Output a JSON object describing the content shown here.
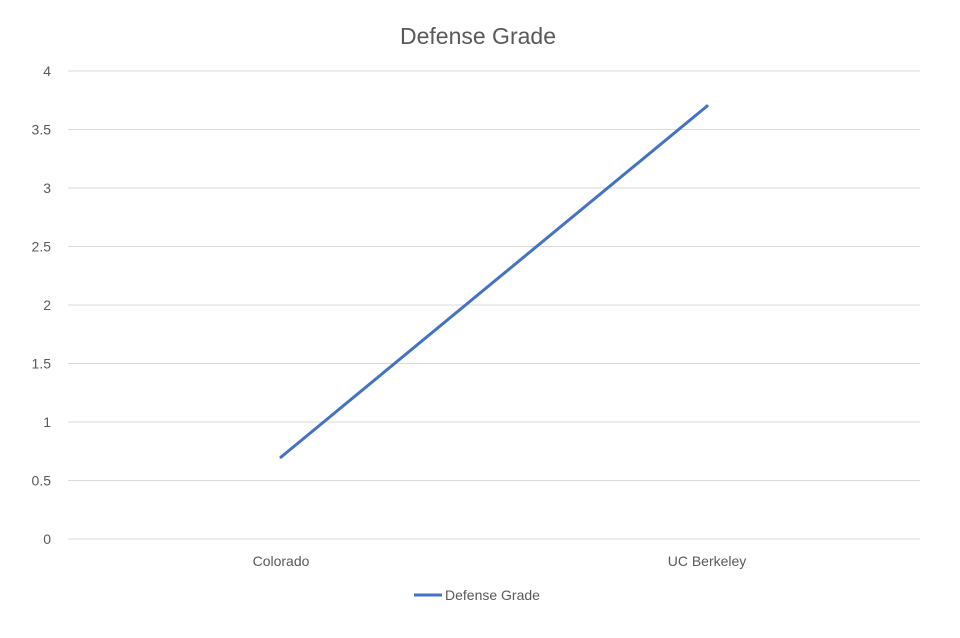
{
  "chart_data": {
    "type": "line",
    "title": "Defense Grade",
    "categories": [
      "Colorado",
      "UC Berkeley"
    ],
    "series": [
      {
        "name": "Defense Grade",
        "values": [
          0.7,
          3.7
        ],
        "color": "#4472c4"
      }
    ],
    "xlabel": "",
    "ylabel": "",
    "ylim": [
      0,
      4
    ],
    "yticks": [
      "0",
      "0.5",
      "1",
      "1.5",
      "2",
      "2.5",
      "3",
      "3.5",
      "4"
    ],
    "grid": true,
    "legend": "bottom",
    "gridline_color": "#d9d9d9",
    "text_color": "#595959"
  }
}
